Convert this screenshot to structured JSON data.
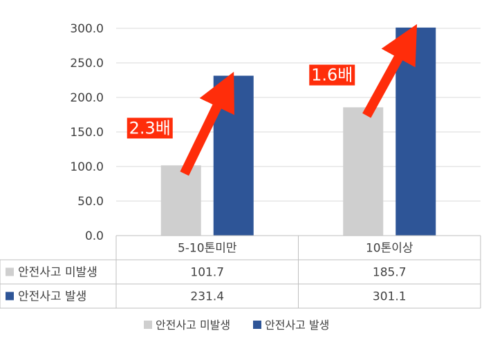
{
  "chart_data": {
    "type": "bar",
    "categories": [
      "5-10톤미만",
      "10톤이상"
    ],
    "series": [
      {
        "name": "안전사고 미발생",
        "values": [
          101.7,
          185.7
        ],
        "value_labels": [
          "101.7",
          "185.7"
        ],
        "color": "#cfcfcf"
      },
      {
        "name": "안전사고 발생",
        "values": [
          231.4,
          301.1
        ],
        "value_labels": [
          "231.4",
          "301.1"
        ],
        "color": "#2e5597"
      }
    ],
    "ylim": [
      0,
      300
    ],
    "yticks": [
      "0.0",
      "50.0",
      "100.0",
      "150.0",
      "200.0",
      "250.0",
      "300.0"
    ],
    "grid": true,
    "data_table": true,
    "legend": "bottom",
    "annotations": [
      {
        "text": "2.3배",
        "category": "5-10톤미만"
      },
      {
        "text": "1.6배",
        "category": "10톤이상"
      }
    ],
    "arrow_color": "#ff2d0a"
  }
}
